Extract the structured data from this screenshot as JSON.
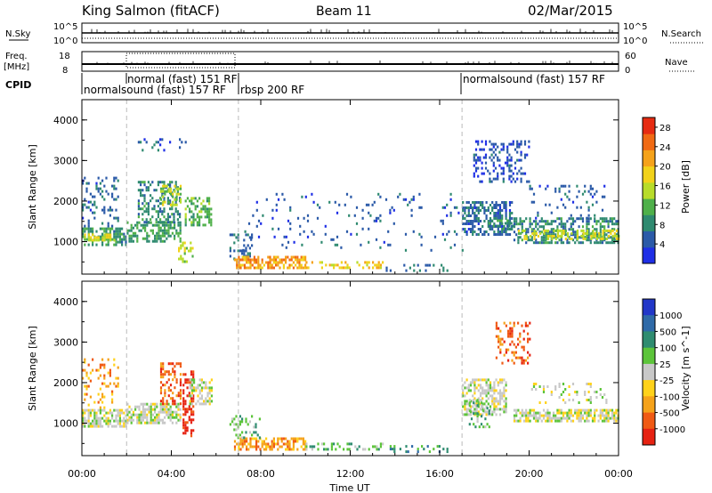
{
  "header": {
    "title": "King Salmon (fitACF)",
    "beam": "Beam 11",
    "date": "02/Mar/2015"
  },
  "panels": {
    "sky_noise": {
      "label": "N.Sky",
      "right_label": "N.Search",
      "ticks": [
        "10^5",
        "10^0"
      ]
    },
    "frequency": {
      "label_line1": "Freq.",
      "label_line2": "[MHz]",
      "right_label": "Nave",
      "left_ticks": [
        "18",
        "8"
      ],
      "right_ticks": [
        "60",
        "0"
      ]
    },
    "cpid": {
      "label": "CPID",
      "segments": [
        {
          "name": "normalsound (fast) 157 RF",
          "start": "00:00",
          "end": "05:00"
        },
        {
          "name": "normal (fast) 151 RF",
          "start": "02:00",
          "end": "07:00"
        },
        {
          "name": "rbsp 200 RF",
          "start": "07:00",
          "end": "17:00"
        },
        {
          "name": "normalsound (fast) 157 RF",
          "start": "17:00",
          "end": "24:00"
        }
      ]
    }
  },
  "colors": {
    "power": [
      "#1f2fe6",
      "#2b5aa8",
      "#2f8a70",
      "#4fb04a",
      "#b8dc2a",
      "#f2d21a",
      "#f5a21a",
      "#f06a14",
      "#e62b12"
    ],
    "velocity": [
      "#2237c8",
      "#2f6aa8",
      "#2f8c70",
      "#5cc43a",
      "#c8c8c8",
      "#ffd21a",
      "#f5a21a",
      "#f05a14",
      "#e62212"
    ]
  },
  "chart_data": [
    {
      "type": "heatmap",
      "panel": "power",
      "ylabel": "Slant Range [km]",
      "yticks": [
        "1000",
        "2000",
        "3000",
        "4000"
      ],
      "ylim": [
        200,
        4500
      ],
      "xlim": [
        0,
        24
      ],
      "colorbar": {
        "label": "Power [dB]",
        "ticks": [
          "4",
          "8",
          "12",
          "16",
          "20",
          "24",
          "28"
        ],
        "range": [
          0,
          30
        ]
      },
      "regions": [
        {
          "t": [
            0.0,
            2.0
          ],
          "r": [
            950,
            1350
          ],
          "v": 9,
          "density": 0.6
        },
        {
          "t": [
            0.0,
            1.6
          ],
          "r": [
            1350,
            2600
          ],
          "v": 6,
          "density": 0.22
        },
        {
          "t": [
            0.1,
            1.5
          ],
          "r": [
            1050,
            1200
          ],
          "v": 17,
          "density": 0.5
        },
        {
          "t": [
            2.0,
            4.4
          ],
          "r": [
            1000,
            1500
          ],
          "v": 10,
          "density": 0.55
        },
        {
          "t": [
            2.5,
            4.4
          ],
          "r": [
            1500,
            2500
          ],
          "v": 8,
          "density": 0.4
        },
        {
          "t": [
            3.5,
            4.4
          ],
          "r": [
            1900,
            2400
          ],
          "v": 15,
          "density": 0.45
        },
        {
          "t": [
            2.5,
            4.7
          ],
          "r": [
            3250,
            3550
          ],
          "v": 5,
          "density": 0.15
        },
        {
          "t": [
            4.6,
            5.8
          ],
          "r": [
            1400,
            2100
          ],
          "v": 11,
          "density": 0.5
        },
        {
          "t": [
            4.3,
            5.0
          ],
          "r": [
            500,
            1000
          ],
          "v": 15,
          "density": 0.4
        },
        {
          "t": [
            6.6,
            7.6
          ],
          "r": [
            600,
            1200
          ],
          "v": 6,
          "density": 0.28
        },
        {
          "t": [
            6.8,
            10.0
          ],
          "r": [
            380,
            650
          ],
          "v": 22,
          "density": 0.6
        },
        {
          "t": [
            10.0,
            13.5
          ],
          "r": [
            380,
            520
          ],
          "v": 19,
          "density": 0.35
        },
        {
          "t": [
            13.5,
            16.5
          ],
          "r": [
            300,
            450
          ],
          "v": 7,
          "density": 0.18
        },
        {
          "t": [
            7.0,
            17.0
          ],
          "r": [
            800,
            2200
          ],
          "v": 5,
          "density": 0.05
        },
        {
          "t": [
            17.0,
            19.2
          ],
          "r": [
            1150,
            2000
          ],
          "v": 6,
          "density": 0.55
        },
        {
          "t": [
            18.2,
            19.3
          ],
          "r": [
            1300,
            1550
          ],
          "v": 9,
          "density": 0.5
        },
        {
          "t": [
            17.5,
            20.0
          ],
          "r": [
            2500,
            3500
          ],
          "v": 4,
          "density": 0.3
        },
        {
          "t": [
            19.3,
            24.0
          ],
          "r": [
            1000,
            1600
          ],
          "v": 8,
          "density": 0.55
        },
        {
          "t": [
            19.5,
            24.0
          ],
          "r": [
            1100,
            1300
          ],
          "v": 16,
          "density": 0.45
        },
        {
          "t": [
            20.0,
            23.5
          ],
          "r": [
            1600,
            2400
          ],
          "v": 5,
          "density": 0.12
        }
      ]
    },
    {
      "type": "heatmap",
      "panel": "velocity",
      "ylabel": "Slant Range [km]",
      "xlabel": "Time UT",
      "yticks": [
        "1000",
        "2000",
        "3000",
        "4000"
      ],
      "ylim": [
        200,
        4500
      ],
      "xlim": [
        0,
        24
      ],
      "xticks": [
        "00:00",
        "04:00",
        "08:00",
        "12:00",
        "16:00",
        "20:00",
        "00:00"
      ],
      "colorbar": {
        "label": "Velocity [m s^-1]",
        "ticks": [
          "1000",
          "500",
          "100",
          "25",
          "-25",
          "-100",
          "-500",
          "-1000"
        ]
      },
      "regions": [
        {
          "t": [
            0.0,
            2.0
          ],
          "r": [
            950,
            1350
          ],
          "v": 4,
          "density": 0.7
        },
        {
          "t": [
            0.0,
            1.6
          ],
          "r": [
            1350,
            2600
          ],
          "v": 6,
          "density": 0.2
        },
        {
          "t": [
            2.0,
            4.4
          ],
          "r": [
            1000,
            1500
          ],
          "v": 4,
          "density": 0.65
        },
        {
          "t": [
            3.5,
            4.4
          ],
          "r": [
            1500,
            2500
          ],
          "v": 7,
          "density": 0.45
        },
        {
          "t": [
            4.5,
            5.0
          ],
          "r": [
            700,
            2300
          ],
          "v": 8,
          "density": 0.5
        },
        {
          "t": [
            4.8,
            5.8
          ],
          "r": [
            1500,
            2100
          ],
          "v": 4,
          "density": 0.5
        },
        {
          "t": [
            6.8,
            10.0
          ],
          "r": [
            380,
            650
          ],
          "v": 6,
          "density": 0.55
        },
        {
          "t": [
            6.6,
            8.0
          ],
          "r": [
            650,
            1200
          ],
          "v": 3,
          "density": 0.22
        },
        {
          "t": [
            10.0,
            13.5
          ],
          "r": [
            380,
            520
          ],
          "v": 3,
          "density": 0.35
        },
        {
          "t": [
            13.5,
            16.5
          ],
          "r": [
            320,
            460
          ],
          "v": 2,
          "density": 0.18
        },
        {
          "t": [
            17.0,
            19.0
          ],
          "r": [
            1200,
            2100
          ],
          "v": 4,
          "density": 0.55
        },
        {
          "t": [
            17.3,
            18.2
          ],
          "r": [
            900,
            1600
          ],
          "v": 3,
          "density": 0.3
        },
        {
          "t": [
            18.5,
            20.0
          ],
          "r": [
            2500,
            3500
          ],
          "v": 7,
          "density": 0.3
        },
        {
          "t": [
            19.3,
            24.0
          ],
          "r": [
            1050,
            1350
          ],
          "v": 4,
          "density": 0.7
        },
        {
          "t": [
            20.0,
            23.5
          ],
          "r": [
            1500,
            2000
          ],
          "v": 4,
          "density": 0.15
        }
      ]
    }
  ]
}
